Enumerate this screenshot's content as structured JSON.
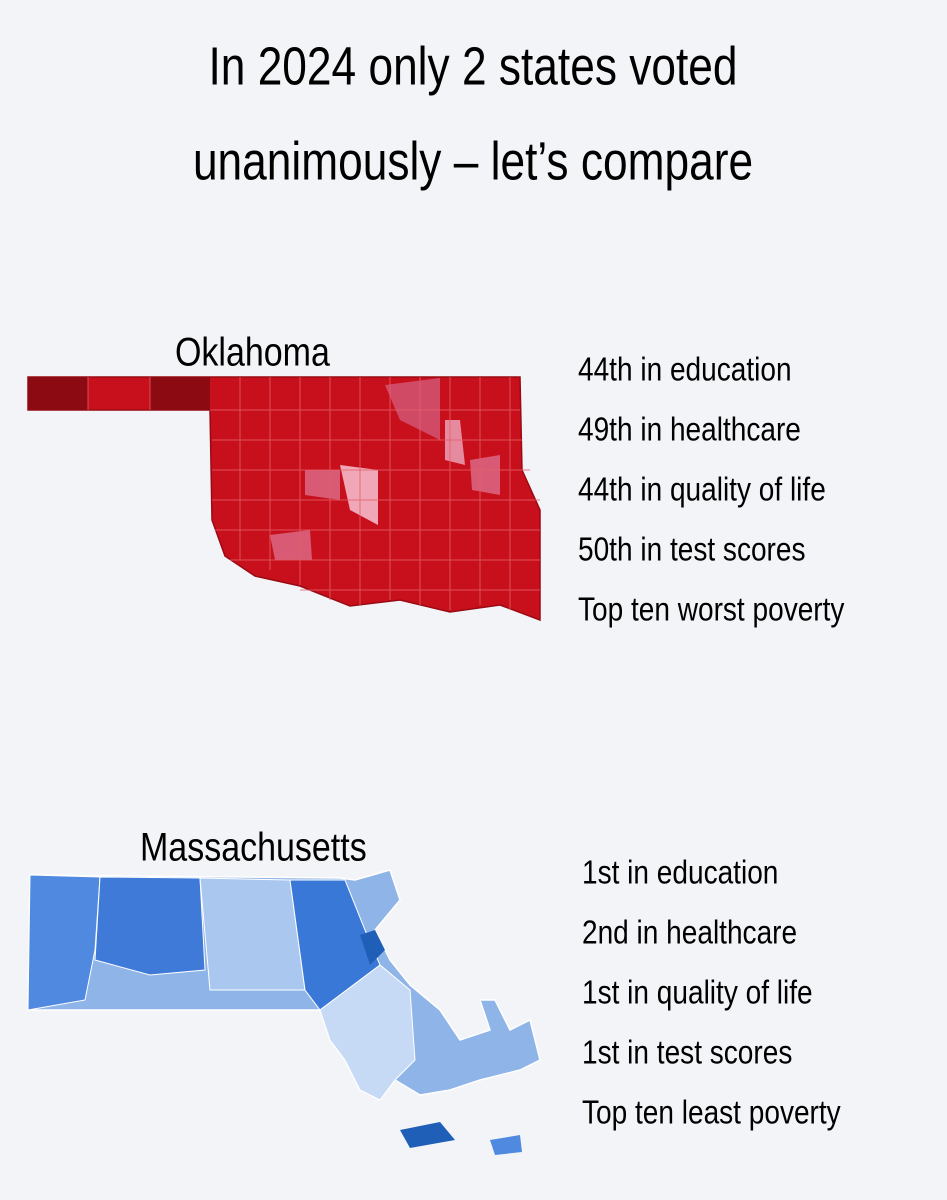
{
  "title": [
    "In 2024 only 2 states voted",
    "unanimously – let’s compare"
  ],
  "states": [
    {
      "name": "Oklahoma",
      "facts": [
        "44th in education",
        "49th in healthcare",
        "44th in quality of life",
        "50th in test scores",
        "Top ten worst poverty"
      ]
    },
    {
      "name": "Massachusetts",
      "facts": [
        "1st in education",
        "2nd in healthcare",
        "1st in quality of life",
        "1st in test scores",
        "Top ten least poverty"
      ]
    }
  ]
}
